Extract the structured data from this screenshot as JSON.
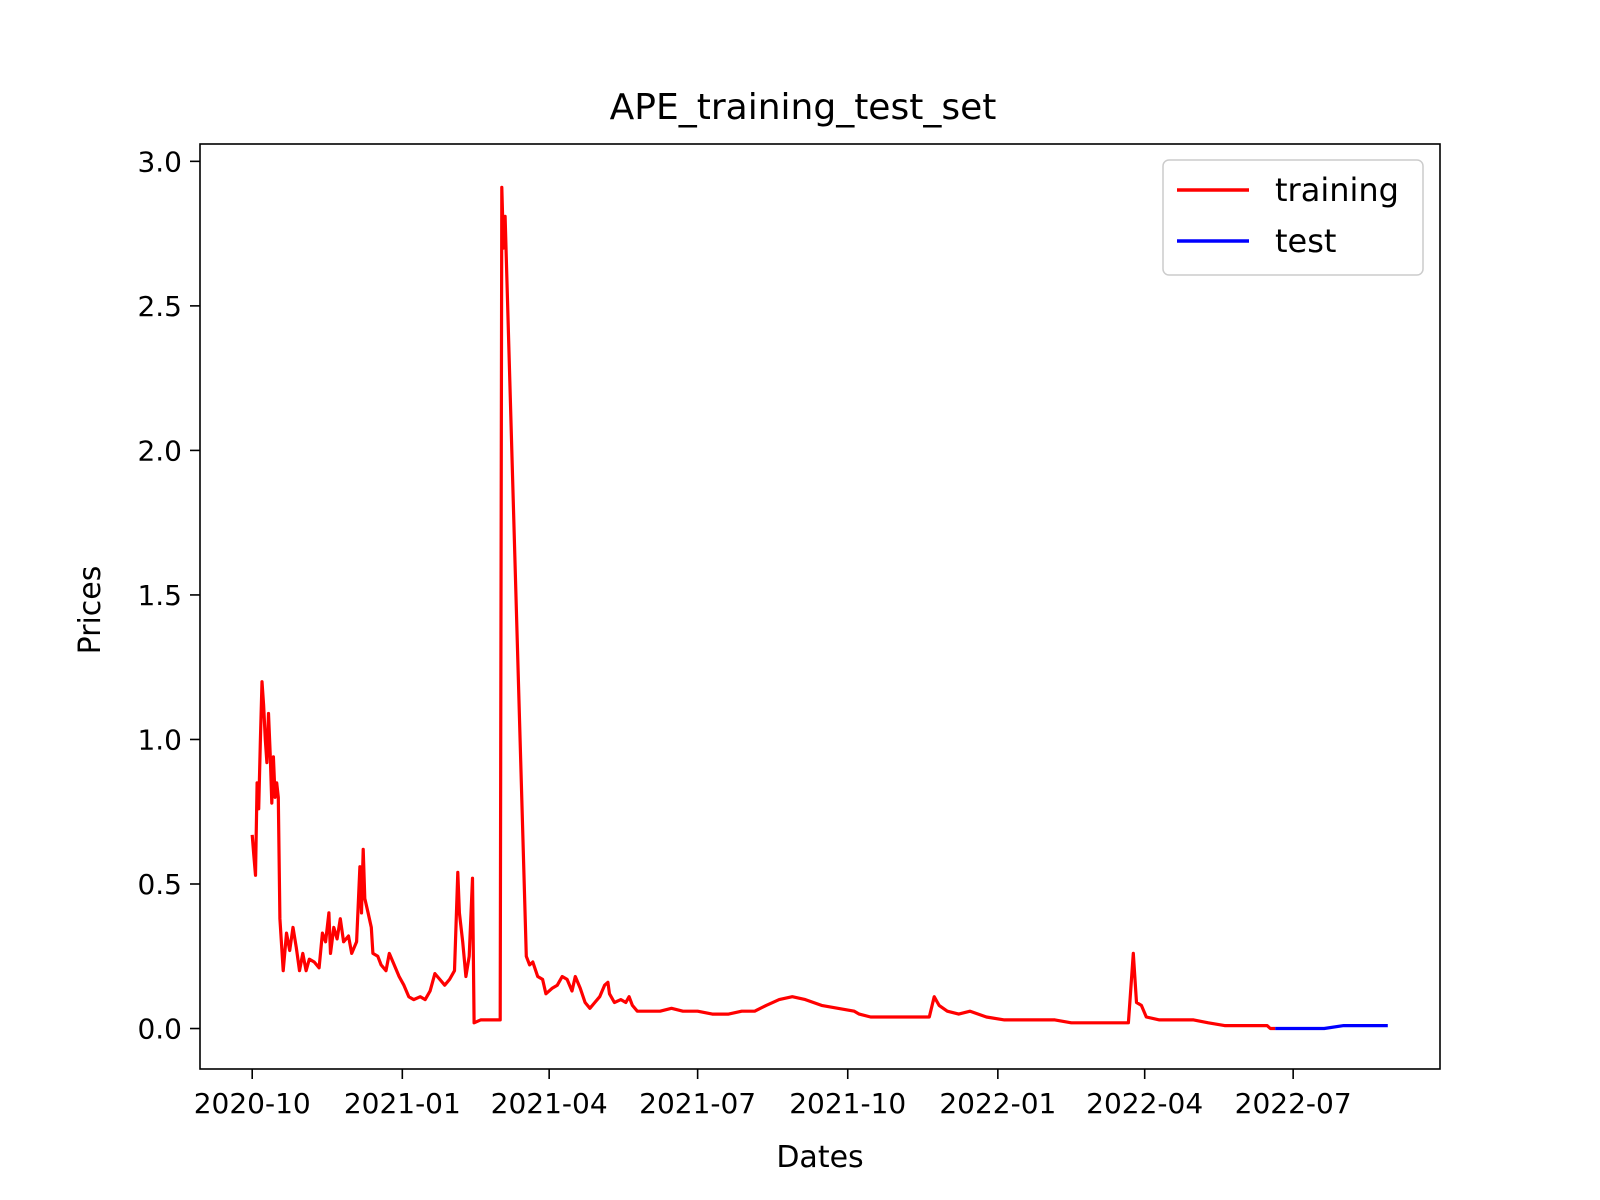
{
  "chart_data": {
    "type": "line",
    "title": "APE_training_test_set",
    "xlabel": "Dates",
    "ylabel": "Prices",
    "xlim": [
      "2020-08-30",
      "2022-09-29"
    ],
    "ylim": [
      -0.14,
      3.06
    ],
    "x_ticks": [
      "2020-10",
      "2021-01",
      "2021-04",
      "2021-07",
      "2021-10",
      "2022-01",
      "2022-04",
      "2022-07"
    ],
    "y_ticks": [
      "0.0",
      "0.5",
      "1.0",
      "1.5",
      "2.0",
      "2.5",
      "3.0"
    ],
    "grid": false,
    "legend_position": "top-right",
    "series": [
      {
        "name": "training",
        "color": "#ff0000",
        "points": [
          [
            "2020-10-01",
            0.67
          ],
          [
            "2020-10-02",
            0.6
          ],
          [
            "2020-10-03",
            0.53
          ],
          [
            "2020-10-04",
            0.85
          ],
          [
            "2020-10-05",
            0.76
          ],
          [
            "2020-10-06",
            1.0
          ],
          [
            "2020-10-07",
            1.2
          ],
          [
            "2020-10-08",
            1.12
          ],
          [
            "2020-10-09",
            1.0
          ],
          [
            "2020-10-10",
            0.92
          ],
          [
            "2020-10-11",
            1.09
          ],
          [
            "2020-10-12",
            0.95
          ],
          [
            "2020-10-13",
            0.78
          ],
          [
            "2020-10-14",
            0.94
          ],
          [
            "2020-10-15",
            0.8
          ],
          [
            "2020-10-16",
            0.85
          ],
          [
            "2020-10-17",
            0.8
          ],
          [
            "2020-10-18",
            0.38
          ],
          [
            "2020-10-20",
            0.2
          ],
          [
            "2020-10-22",
            0.33
          ],
          [
            "2020-10-24",
            0.27
          ],
          [
            "2020-10-26",
            0.35
          ],
          [
            "2020-10-28",
            0.28
          ],
          [
            "2020-10-30",
            0.2
          ],
          [
            "2020-11-01",
            0.26
          ],
          [
            "2020-11-03",
            0.2
          ],
          [
            "2020-11-05",
            0.24
          ],
          [
            "2020-11-08",
            0.23
          ],
          [
            "2020-11-11",
            0.21
          ],
          [
            "2020-11-13",
            0.33
          ],
          [
            "2020-11-15",
            0.3
          ],
          [
            "2020-11-17",
            0.4
          ],
          [
            "2020-11-18",
            0.26
          ],
          [
            "2020-11-20",
            0.35
          ],
          [
            "2020-11-22",
            0.31
          ],
          [
            "2020-11-24",
            0.38
          ],
          [
            "2020-11-26",
            0.3
          ],
          [
            "2020-11-29",
            0.32
          ],
          [
            "2020-12-01",
            0.26
          ],
          [
            "2020-12-04",
            0.3
          ],
          [
            "2020-12-06",
            0.56
          ],
          [
            "2020-12-07",
            0.4
          ],
          [
            "2020-12-08",
            0.62
          ],
          [
            "2020-12-09",
            0.45
          ],
          [
            "2020-12-11",
            0.4
          ],
          [
            "2020-12-13",
            0.35
          ],
          [
            "2020-12-14",
            0.26
          ],
          [
            "2020-12-17",
            0.25
          ],
          [
            "2020-12-19",
            0.22
          ],
          [
            "2020-12-22",
            0.2
          ],
          [
            "2020-12-24",
            0.26
          ],
          [
            "2020-12-27",
            0.22
          ],
          [
            "2020-12-30",
            0.18
          ],
          [
            "2021-01-02",
            0.15
          ],
          [
            "2021-01-05",
            0.11
          ],
          [
            "2021-01-08",
            0.1
          ],
          [
            "2021-01-12",
            0.11
          ],
          [
            "2021-01-15",
            0.1
          ],
          [
            "2021-01-18",
            0.13
          ],
          [
            "2021-01-21",
            0.19
          ],
          [
            "2021-01-24",
            0.17
          ],
          [
            "2021-01-27",
            0.15
          ],
          [
            "2021-01-30",
            0.17
          ],
          [
            "2021-02-02",
            0.2
          ],
          [
            "2021-02-04",
            0.54
          ],
          [
            "2021-02-05",
            0.4
          ],
          [
            "2021-02-07",
            0.3
          ],
          [
            "2021-02-09",
            0.18
          ],
          [
            "2021-02-11",
            0.25
          ],
          [
            "2021-02-13",
            0.52
          ],
          [
            "2021-02-14",
            0.02
          ],
          [
            "2021-02-18",
            0.03
          ],
          [
            "2021-02-22",
            0.03
          ],
          [
            "2021-03-02",
            0.03
          ],
          [
            "2021-03-03",
            2.91
          ],
          [
            "2021-03-04",
            2.7
          ],
          [
            "2021-03-05",
            2.81
          ],
          [
            "2021-03-18",
            0.25
          ],
          [
            "2021-03-20",
            0.22
          ],
          [
            "2021-03-22",
            0.23
          ],
          [
            "2021-03-25",
            0.18
          ],
          [
            "2021-03-28",
            0.17
          ],
          [
            "2021-03-30",
            0.12
          ],
          [
            "2021-04-03",
            0.14
          ],
          [
            "2021-04-06",
            0.15
          ],
          [
            "2021-04-09",
            0.18
          ],
          [
            "2021-04-12",
            0.17
          ],
          [
            "2021-04-15",
            0.13
          ],
          [
            "2021-04-17",
            0.18
          ],
          [
            "2021-04-20",
            0.14
          ],
          [
            "2021-04-23",
            0.09
          ],
          [
            "2021-04-26",
            0.07
          ],
          [
            "2021-04-29",
            0.09
          ],
          [
            "2021-05-02",
            0.11
          ],
          [
            "2021-05-05",
            0.15
          ],
          [
            "2021-05-07",
            0.16
          ],
          [
            "2021-05-08",
            0.12
          ],
          [
            "2021-05-11",
            0.09
          ],
          [
            "2021-05-15",
            0.1
          ],
          [
            "2021-05-18",
            0.09
          ],
          [
            "2021-05-20",
            0.11
          ],
          [
            "2021-05-22",
            0.08
          ],
          [
            "2021-05-25",
            0.06
          ],
          [
            "2021-06-01",
            0.06
          ],
          [
            "2021-06-08",
            0.06
          ],
          [
            "2021-06-15",
            0.07
          ],
          [
            "2021-06-22",
            0.06
          ],
          [
            "2021-07-01",
            0.06
          ],
          [
            "2021-07-10",
            0.05
          ],
          [
            "2021-07-20",
            0.05
          ],
          [
            "2021-07-28",
            0.06
          ],
          [
            "2021-08-05",
            0.06
          ],
          [
            "2021-08-12",
            0.08
          ],
          [
            "2021-08-20",
            0.1
          ],
          [
            "2021-08-28",
            0.11
          ],
          [
            "2021-09-05",
            0.1
          ],
          [
            "2021-09-15",
            0.08
          ],
          [
            "2021-09-25",
            0.07
          ],
          [
            "2021-10-05",
            0.06
          ],
          [
            "2021-10-08",
            0.05
          ],
          [
            "2021-10-15",
            0.04
          ],
          [
            "2021-10-25",
            0.04
          ],
          [
            "2021-11-05",
            0.04
          ],
          [
            "2021-11-15",
            0.04
          ],
          [
            "2021-11-20",
            0.04
          ],
          [
            "2021-11-23",
            0.11
          ],
          [
            "2021-11-26",
            0.08
          ],
          [
            "2021-12-01",
            0.06
          ],
          [
            "2021-12-08",
            0.05
          ],
          [
            "2021-12-15",
            0.06
          ],
          [
            "2021-12-25",
            0.04
          ],
          [
            "2022-01-05",
            0.03
          ],
          [
            "2022-01-15",
            0.03
          ],
          [
            "2022-01-25",
            0.03
          ],
          [
            "2022-02-05",
            0.03
          ],
          [
            "2022-02-15",
            0.02
          ],
          [
            "2022-02-25",
            0.02
          ],
          [
            "2022-03-05",
            0.02
          ],
          [
            "2022-03-15",
            0.02
          ],
          [
            "2022-03-22",
            0.02
          ],
          [
            "2022-03-25",
            0.26
          ],
          [
            "2022-03-27",
            0.09
          ],
          [
            "2022-03-30",
            0.08
          ],
          [
            "2022-04-02",
            0.04
          ],
          [
            "2022-04-10",
            0.03
          ],
          [
            "2022-04-20",
            0.03
          ],
          [
            "2022-05-01",
            0.03
          ],
          [
            "2022-05-10",
            0.02
          ],
          [
            "2022-05-20",
            0.01
          ],
          [
            "2022-06-01",
            0.01
          ],
          [
            "2022-06-10",
            0.01
          ],
          [
            "2022-06-15",
            0.01
          ],
          [
            "2022-06-17",
            0.0
          ],
          [
            "2022-06-20",
            0.0
          ]
        ]
      },
      {
        "name": "test",
        "color": "#0000ff",
        "points": [
          [
            "2022-06-20",
            0.0
          ],
          [
            "2022-07-01",
            0.0
          ],
          [
            "2022-07-10",
            0.0
          ],
          [
            "2022-07-20",
            0.0
          ],
          [
            "2022-08-01",
            0.01
          ],
          [
            "2022-08-10",
            0.01
          ],
          [
            "2022-08-20",
            0.01
          ],
          [
            "2022-08-28",
            0.01
          ]
        ]
      }
    ]
  }
}
